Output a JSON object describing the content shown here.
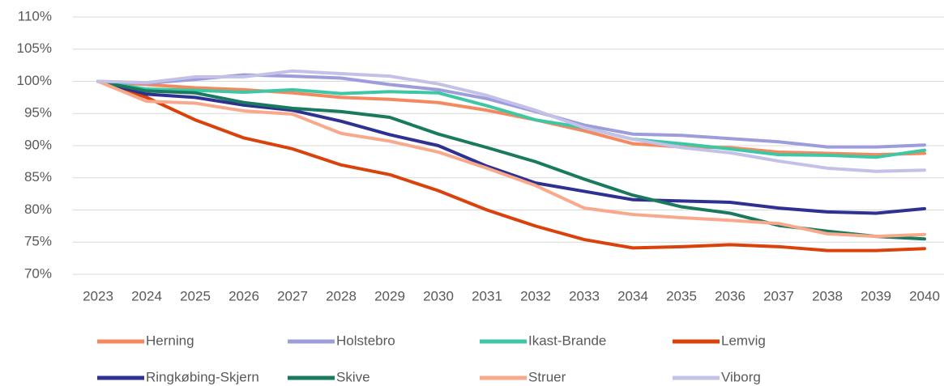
{
  "chart_data": {
    "type": "line",
    "categories": [
      "2023",
      "2024",
      "2025",
      "2026",
      "2027",
      "2028",
      "2029",
      "2030",
      "2031",
      "2032",
      "2033",
      "2034",
      "2035",
      "2036",
      "2037",
      "2038",
      "2039",
      "2040"
    ],
    "series": [
      {
        "name": "Herning",
        "color": "#f4895f",
        "values": [
          100,
          99.5,
          99,
          98.7,
          98.2,
          97.5,
          97.2,
          96.7,
          95.5,
          94,
          92.3,
          90.3,
          89.8,
          89.7,
          89,
          88.8,
          88.6,
          88.8
        ]
      },
      {
        "name": "Holstebro",
        "color": "#9e9ddb",
        "values": [
          100,
          99.7,
          100.3,
          101,
          100.8,
          100.5,
          99.5,
          98.7,
          97.3,
          95.3,
          93.2,
          91.8,
          91.6,
          91.1,
          90.6,
          89.8,
          89.8,
          90.1
        ]
      },
      {
        "name": "Ikast-Brande",
        "color": "#3ec7a4",
        "values": [
          100,
          98.8,
          98.6,
          98.3,
          98.7,
          98.1,
          98.4,
          98.2,
          96.2,
          94,
          92.8,
          91,
          90.3,
          89.5,
          88.6,
          88.5,
          88.2,
          89.3
        ]
      },
      {
        "name": "Lemvig",
        "color": "#d9420b",
        "values": [
          100,
          97.5,
          94,
          91.2,
          89.5,
          87,
          85.5,
          83,
          80,
          77.5,
          75.4,
          74.1,
          74.3,
          74.6,
          74.3,
          73.7,
          73.7,
          74
        ]
      },
      {
        "name": "Ringkøbing-Skjern",
        "color": "#2e3192",
        "values": [
          100,
          98,
          97.5,
          96.3,
          95.5,
          93.8,
          91.7,
          90,
          86.8,
          84.2,
          82.9,
          81.6,
          81.4,
          81.2,
          80.3,
          79.7,
          79.5,
          80.2
        ]
      },
      {
        "name": "Skive",
        "color": "#1a7a5e",
        "values": [
          100,
          98.5,
          98.2,
          96.7,
          95.8,
          95.3,
          94.4,
          91.8,
          89.7,
          87.5,
          84.8,
          82.3,
          80.5,
          79.5,
          77.6,
          76.7,
          75.9,
          75.5
        ]
      },
      {
        "name": "Struer",
        "color": "#f9a98b",
        "values": [
          100,
          96.9,
          96.6,
          95.4,
          94.9,
          91.9,
          90.7,
          89,
          86.5,
          83.8,
          80.3,
          79.3,
          78.8,
          78.4,
          77.9,
          76.3,
          75.9,
          76.2
        ]
      },
      {
        "name": "Viborg",
        "color": "#c4c1e8",
        "values": [
          100,
          99.8,
          100.7,
          100.7,
          101.6,
          101.2,
          100.8,
          99.6,
          97.8,
          95.5,
          92.8,
          91,
          89.7,
          88.9,
          87.6,
          86.5,
          86,
          86.2
        ]
      }
    ],
    "ylim": [
      70,
      110
    ],
    "yticks": [
      {
        "value": 70,
        "label": "70%"
      },
      {
        "value": 75,
        "label": "75%"
      },
      {
        "value": 80,
        "label": "80%"
      },
      {
        "value": 85,
        "label": "85%"
      },
      {
        "value": 90,
        "label": "90%"
      },
      {
        "value": 95,
        "label": "95%"
      },
      {
        "value": 100,
        "label": "100%"
      },
      {
        "value": 105,
        "label": "105%"
      },
      {
        "value": 110,
        "label": "110%"
      }
    ],
    "grid": true,
    "legend": "bottom"
  }
}
